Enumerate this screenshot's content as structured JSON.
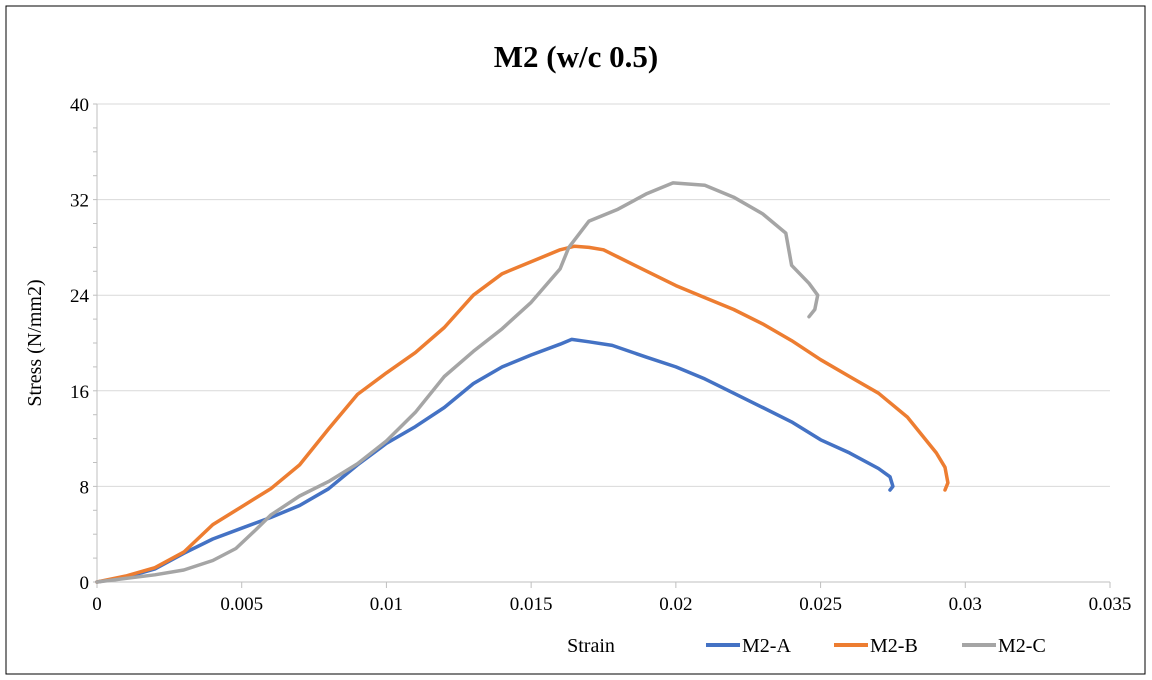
{
  "chart_data": {
    "type": "line",
    "title": "M2 (w/c 0.5)",
    "xlabel": "Strain",
    "ylabel": "Stress (N/mm2)",
    "xlim": [
      0,
      0.035
    ],
    "ylim": [
      0,
      40
    ],
    "x_ticks": [
      "0",
      "0.005",
      "0.01",
      "0.015",
      "0.02",
      "0.025",
      "0.03",
      "0.035"
    ],
    "y_ticks": [
      "0",
      "8",
      "16",
      "24",
      "32",
      "40"
    ],
    "grid": "horizontal",
    "legend_position": "bottom",
    "series": [
      {
        "name": "M2-A",
        "color": "#4472C4",
        "points": [
          [
            0,
            0
          ],
          [
            0.001,
            0.4
          ],
          [
            0.002,
            1.1
          ],
          [
            0.003,
            2.4
          ],
          [
            0.004,
            3.6
          ],
          [
            0.005,
            4.5
          ],
          [
            0.006,
            5.4
          ],
          [
            0.007,
            6.4
          ],
          [
            0.008,
            7.8
          ],
          [
            0.009,
            9.8
          ],
          [
            0.01,
            11.6
          ],
          [
            0.011,
            13.0
          ],
          [
            0.012,
            14.6
          ],
          [
            0.013,
            16.6
          ],
          [
            0.014,
            18.0
          ],
          [
            0.015,
            19.0
          ],
          [
            0.016,
            19.9
          ],
          [
            0.0164,
            20.3
          ],
          [
            0.017,
            20.1
          ],
          [
            0.0178,
            19.8
          ],
          [
            0.019,
            18.8
          ],
          [
            0.02,
            18.0
          ],
          [
            0.021,
            17.0
          ],
          [
            0.022,
            15.8
          ],
          [
            0.023,
            14.6
          ],
          [
            0.024,
            13.4
          ],
          [
            0.025,
            11.9
          ],
          [
            0.026,
            10.8
          ],
          [
            0.027,
            9.5
          ],
          [
            0.0274,
            8.8
          ],
          [
            0.0275,
            8.0
          ],
          [
            0.0274,
            7.7
          ]
        ]
      },
      {
        "name": "M2-B",
        "color": "#ED7D31",
        "points": [
          [
            0,
            0
          ],
          [
            0.001,
            0.5
          ],
          [
            0.002,
            1.2
          ],
          [
            0.003,
            2.5
          ],
          [
            0.004,
            4.8
          ],
          [
            0.005,
            6.3
          ],
          [
            0.006,
            7.8
          ],
          [
            0.007,
            9.8
          ],
          [
            0.008,
            12.8
          ],
          [
            0.009,
            15.7
          ],
          [
            0.01,
            17.5
          ],
          [
            0.011,
            19.2
          ],
          [
            0.012,
            21.3
          ],
          [
            0.013,
            24.0
          ],
          [
            0.014,
            25.8
          ],
          [
            0.015,
            26.8
          ],
          [
            0.016,
            27.8
          ],
          [
            0.0165,
            28.1
          ],
          [
            0.017,
            28.0
          ],
          [
            0.0175,
            27.8
          ],
          [
            0.018,
            27.2
          ],
          [
            0.019,
            26.0
          ],
          [
            0.02,
            24.8
          ],
          [
            0.021,
            23.8
          ],
          [
            0.022,
            22.8
          ],
          [
            0.023,
            21.6
          ],
          [
            0.024,
            20.2
          ],
          [
            0.025,
            18.6
          ],
          [
            0.026,
            17.2
          ],
          [
            0.027,
            15.8
          ],
          [
            0.028,
            13.8
          ],
          [
            0.029,
            10.8
          ],
          [
            0.0293,
            9.6
          ],
          [
            0.0294,
            8.3
          ],
          [
            0.0293,
            7.7
          ]
        ]
      },
      {
        "name": "M2-C",
        "color": "#A5A5A5",
        "points": [
          [
            0,
            0
          ],
          [
            0.001,
            0.3
          ],
          [
            0.002,
            0.6
          ],
          [
            0.003,
            1.0
          ],
          [
            0.004,
            1.8
          ],
          [
            0.0048,
            2.8
          ],
          [
            0.0055,
            4.4
          ],
          [
            0.006,
            5.6
          ],
          [
            0.007,
            7.2
          ],
          [
            0.008,
            8.4
          ],
          [
            0.009,
            9.9
          ],
          [
            0.01,
            11.8
          ],
          [
            0.011,
            14.2
          ],
          [
            0.012,
            17.2
          ],
          [
            0.013,
            19.3
          ],
          [
            0.014,
            21.2
          ],
          [
            0.015,
            23.4
          ],
          [
            0.016,
            26.2
          ],
          [
            0.0163,
            28.0
          ],
          [
            0.017,
            30.2
          ],
          [
            0.018,
            31.2
          ],
          [
            0.019,
            32.5
          ],
          [
            0.0199,
            33.4
          ],
          [
            0.021,
            33.2
          ],
          [
            0.022,
            32.2
          ],
          [
            0.023,
            30.8
          ],
          [
            0.0238,
            29.2
          ],
          [
            0.024,
            26.5
          ],
          [
            0.0246,
            25.0
          ],
          [
            0.0249,
            24.0
          ],
          [
            0.0248,
            22.8
          ],
          [
            0.0246,
            22.2
          ]
        ]
      }
    ]
  }
}
